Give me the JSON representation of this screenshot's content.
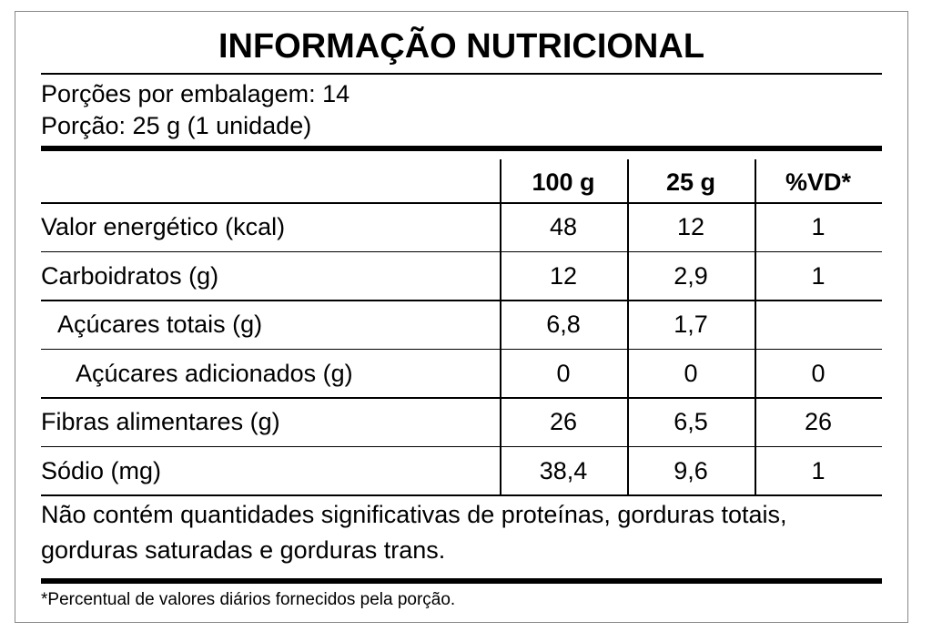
{
  "header": {
    "title": "INFORMAÇÃO NUTRICIONAL",
    "servings_per_package": "Porções por embalagem: 14",
    "serving_size": "Porção: 25 g (1 unidade)"
  },
  "table": {
    "columns": [
      "100 g",
      "25 g",
      "%VD*"
    ],
    "rows": [
      {
        "label": "Valor energético (kcal)",
        "cells": [
          "48",
          "12",
          "1"
        ]
      },
      {
        "label": "Carboidratos (g)",
        "cells": [
          "12",
          "2,9",
          "1"
        ]
      },
      {
        "label": "Açúcares totais (g)",
        "cells": [
          "6,8",
          "1,7"
        ]
      },
      {
        "label": "Açúcares adicionados (g)",
        "cells": [
          "0",
          "0",
          "0"
        ]
      },
      {
        "label": "Fibras alimentares (g)",
        "cells": [
          "26",
          "6,5",
          "26"
        ]
      },
      {
        "label": "Sódio (mg)",
        "cells": [
          "38,4",
          "9,6",
          "1"
        ]
      }
    ]
  },
  "note": "Não contém quantidades significativas de proteínas, gorduras totais, gorduras saturadas e gorduras trans.",
  "footnote": "*Percentual de valores diários fornecidos pela porção."
}
